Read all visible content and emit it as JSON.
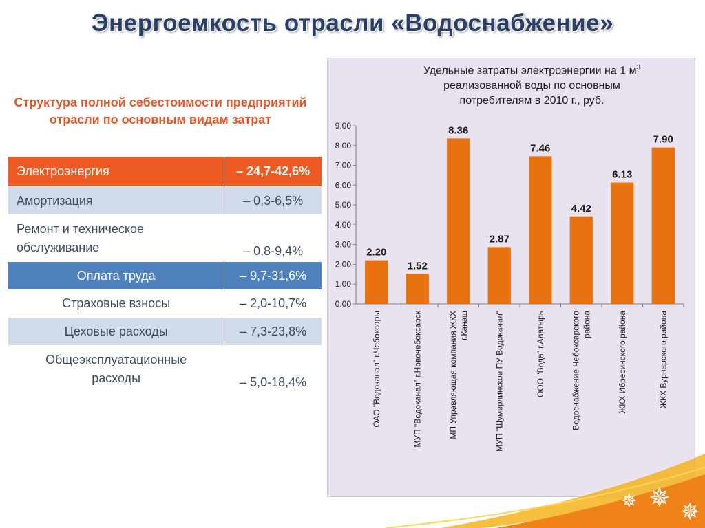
{
  "slide_title": "Энергоемкость отрасли «Водоснабжение»",
  "table": {
    "heading": "Структура полной себестоимости предприятий отрасли по основным видам затрат",
    "rows": [
      {
        "label": "Электроэнергия",
        "value": "– 24,7-42,6%"
      },
      {
        "label": "Амортизация",
        "value": "– 0,3-6,5%"
      },
      {
        "label": "Ремонт и техническое обслуживание",
        "value": "– 0,8-9,4%"
      },
      {
        "label": "Оплата труда",
        "value": "– 9,7-31,6%"
      },
      {
        "label": "Страховые взносы",
        "value": "– 2,0-10,7%"
      },
      {
        "label": "Цеховые расходы",
        "value": "– 7,3-23,8%"
      },
      {
        "label": "Общеэксплуатационные расходы",
        "value": "– 5,0-18,4%"
      }
    ]
  },
  "chart_title": {
    "line1": "Удельные затраты электроэнергии на 1 м",
    "sup": "3",
    "line2": "реализованной воды по основным",
    "line3": "потребителям в 2010 г., руб."
  },
  "chart_data": {
    "type": "bar",
    "title": "Удельные затраты электроэнергии на 1 м3 реализованной воды по основным потребителям в 2010 г., руб.",
    "categories": [
      "ОАО \"Водоканал\" г.Чебоксары",
      "МУП \"Водоканал\" г.Новочебоксарск",
      "МП Управляющая компания ЖКХ г.Канаш",
      "МУП \"Шумерлинское ПУ Водоканал\"",
      "ООО \"Вода\" г.Алатырь",
      "Водоснабжение Чебоксарского района",
      "ЖКХ Ибресинского района",
      "ЖКХ Вурнарского района"
    ],
    "category_lines": [
      [
        "ОАО \"Водоканал\" г.Чебоксары"
      ],
      [
        "МУП \"Водоканал\" г.Новочебоксарск"
      ],
      [
        "МП Управляющая компания ЖКХ",
        "г.Канаш"
      ],
      [
        "МУП \"Шумерлинское ПУ Водоканал\""
      ],
      [
        "ООО \"Вода\" г.Алатырь"
      ],
      [
        "Водоснабжение Чебоксарского",
        "района"
      ],
      [
        "ЖКХ Ибресинского района"
      ],
      [
        "ЖКХ Вурнарского района"
      ]
    ],
    "values": [
      2.2,
      1.52,
      8.36,
      2.87,
      7.46,
      4.42,
      6.13,
      7.9
    ],
    "data_labels": [
      "2.20",
      "1.52",
      "8.36",
      "2.87",
      "7.46",
      "4.42",
      "6.13",
      "7.90"
    ],
    "yticks": [
      "0.00",
      "1.00",
      "2.00",
      "3.00",
      "4.00",
      "5.00",
      "6.00",
      "7.00",
      "8.00",
      "9.00"
    ],
    "ylim": [
      0,
      9
    ],
    "grid": false,
    "bar_color": "#e8720f"
  },
  "colors": {
    "title": "#2a3f66",
    "subtitle": "#e0582a",
    "table_orange": "#ef5a24",
    "table_blue": "#4f81bd",
    "table_light": "#d2dbea",
    "chart_bg": "#e8e3ee",
    "ribbon": "#f29a1a"
  },
  "decor": {
    "star_icon": "star-burst-icon"
  }
}
